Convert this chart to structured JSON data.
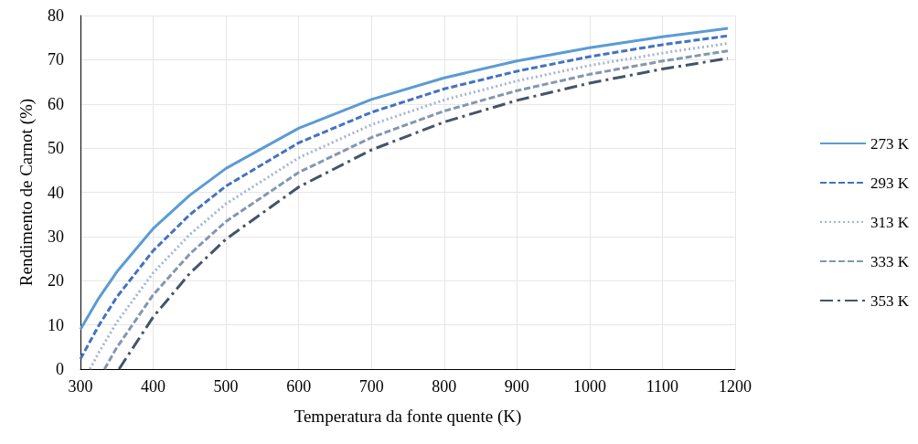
{
  "chart_data": {
    "type": "line",
    "xlabel": "Temperatura da fonte quente (K)",
    "ylabel": "Rendimento de Carnot (%)",
    "xlim": [
      300,
      1200
    ],
    "xticks": [
      300,
      400,
      500,
      600,
      700,
      800,
      900,
      1000,
      1100,
      1200
    ],
    "ylim": [
      0,
      80
    ],
    "yticks": [
      0,
      10,
      20,
      30,
      40,
      50,
      60,
      70,
      80
    ],
    "grid": true,
    "legend": "right",
    "marker": "none",
    "series": [
      {
        "name": "273 K",
        "color": "#5b9bd5",
        "line_style": "solid",
        "x": [
          300,
          325,
          350,
          400,
          450,
          500,
          600,
          700,
          800,
          900,
          1000,
          1100,
          1190
        ],
        "values": [
          9.0,
          16.0,
          22.0,
          31.8,
          39.3,
          45.4,
          54.5,
          61.0,
          65.9,
          69.7,
          72.7,
          75.2,
          77.1
        ]
      },
      {
        "name": "293 K",
        "color": "#4472c4",
        "line_style": "dashed",
        "x": [
          300,
          325,
          350,
          400,
          450,
          500,
          600,
          700,
          800,
          900,
          1000,
          1100,
          1190
        ],
        "values": [
          2.3,
          9.8,
          16.3,
          26.8,
          34.9,
          41.4,
          51.2,
          58.1,
          63.4,
          67.4,
          70.7,
          73.4,
          75.4
        ]
      },
      {
        "name": "313 K",
        "color": "#a5b4cf",
        "line_style": "dotted",
        "x": [
          313,
          325,
          350,
          400,
          450,
          500,
          600,
          700,
          800,
          900,
          1000,
          1100,
          1190
        ],
        "values": [
          0,
          3.7,
          10.6,
          21.8,
          30.4,
          37.4,
          47.8,
          55.3,
          60.9,
          65.2,
          68.7,
          71.5,
          73.7
        ]
      },
      {
        "name": "333 K",
        "color": "#8497b0",
        "line_style": "dashed",
        "x": [
          333,
          350,
          400,
          450,
          500,
          600,
          700,
          800,
          900,
          1000,
          1100,
          1190
        ],
        "values": [
          0,
          4.9,
          16.8,
          26.0,
          33.4,
          44.5,
          52.4,
          58.4,
          63.0,
          66.7,
          69.7,
          72.0
        ]
      },
      {
        "name": "353 K",
        "color": "#44546a",
        "line_style": "dashdot",
        "x": [
          353,
          400,
          450,
          500,
          600,
          700,
          800,
          900,
          1000,
          1100,
          1190
        ],
        "values": [
          0,
          11.8,
          21.6,
          29.4,
          41.2,
          49.6,
          55.9,
          60.8,
          64.7,
          67.9,
          70.3
        ]
      }
    ]
  }
}
